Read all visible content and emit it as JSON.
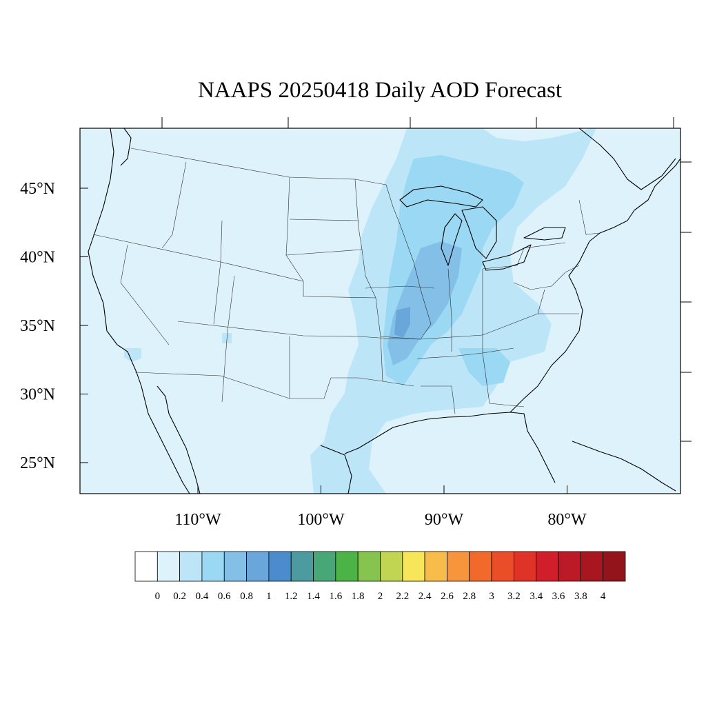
{
  "title": "NAAPS 20250418 Daily AOD Forecast",
  "colors": {
    "background_fill": "#def2fb",
    "levels": [
      "#ffffff",
      "#def2fb",
      "#bce6f8",
      "#9bd8f4",
      "#84bfe8",
      "#69a7db",
      "#4a8ccc",
      "#4b9ba0",
      "#48a777",
      "#4cb346",
      "#86c44f",
      "#c2d553",
      "#f7e55a",
      "#f8bc4a",
      "#f6953b",
      "#f26a2b",
      "#ea4e28",
      "#df3327",
      "#d01f2b",
      "#bd1a27",
      "#a8171f",
      "#93141a"
    ]
  },
  "y_ticks": [
    {
      "lat": 45,
      "label": "45°N"
    },
    {
      "lat": 40,
      "label": "40°N"
    },
    {
      "lat": 35,
      "label": "35°N"
    },
    {
      "lat": 30,
      "label": "30°N"
    },
    {
      "lat": 25,
      "label": "25°N"
    }
  ],
  "x_ticks": [
    {
      "lon": -110,
      "label": "110°W"
    },
    {
      "lon": -100,
      "label": "100°W"
    },
    {
      "lon": -90,
      "label": "90°W"
    },
    {
      "lon": -80,
      "label": "80°W"
    }
  ],
  "colorbar": {
    "labels": [
      "0",
      "0.2",
      "0.4",
      "0.6",
      "0.8",
      "1",
      "1.2",
      "1.4",
      "1.6",
      "1.8",
      "2",
      "2.2",
      "2.4",
      "2.6",
      "2.8",
      "3",
      "3.2",
      "3.4",
      "3.6",
      "3.8",
      "4"
    ]
  }
}
